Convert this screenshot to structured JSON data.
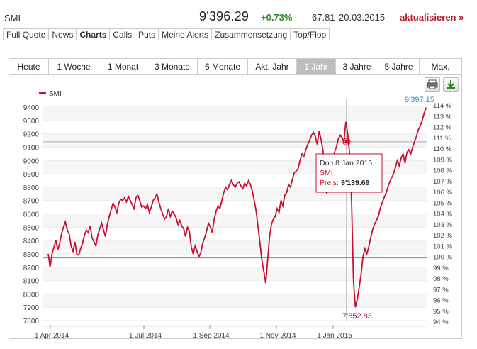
{
  "header": {
    "symbol": "SMI",
    "price": "9'396.29",
    "change": "+0.73%",
    "volume": "67.81",
    "date": "20.03.2015",
    "refresh_label": "aktualisieren »"
  },
  "tabs": [
    "Full Quote",
    "News",
    "Charts",
    "Calls",
    "Puts",
    "Meine Alerts",
    "Zusammensetzung",
    "Top/Flop"
  ],
  "active_tab": "Charts",
  "ranges": [
    "Heute",
    "1 Woche",
    "1 Monat",
    "3 Monate",
    "6 Monate",
    "Akt. Jahr",
    "1 Jahr",
    "3 Jahre",
    "5 Jahre",
    "Max."
  ],
  "active_range": "1 Jahr",
  "toolbar": {
    "print_icon": "printer-icon",
    "download_icon": "download-icon"
  },
  "chart_data": {
    "type": "line",
    "legend": "SMI",
    "y_ticks": [
      "9400",
      "9300",
      "9200",
      "9100",
      "9000",
      "8900",
      "8800",
      "8700",
      "8600",
      "8500",
      "8400",
      "8300",
      "8200",
      "8100",
      "8000",
      "7900",
      "7800"
    ],
    "y2_ticks": [
      "114 %",
      "113 %",
      "112 %",
      "111 %",
      "110 %",
      "109 %",
      "108 %",
      "107 %",
      "106 %",
      "105 %",
      "104 %",
      "103 %",
      "102 %",
      "101 %",
      "100 %",
      "99 %",
      "98 %",
      "97 %",
      "96 %",
      "95 %",
      "94 %"
    ],
    "x_ticks": [
      "1 Apr 2014",
      "1 Jul 2014",
      "1 Sep 2014",
      "1 Nov 2014",
      "1 Jan 2015"
    ],
    "ylim": [
      7800,
      9400
    ],
    "max_label": "9'397.15",
    "min_label": "7'852.83",
    "reference_value": 8270,
    "tooltip": {
      "date": "Don 8 Jan 2015",
      "series": "SMI",
      "price_label": "Preis:",
      "price_value": "9'139.69"
    },
    "series_values": [
      8300,
      8200,
      8300,
      8350,
      8400,
      8330,
      8380,
      8450,
      8500,
      8540,
      8480,
      8450,
      8360,
      8320,
      8390,
      8300,
      8290,
      8340,
      8380,
      8440,
      8480,
      8460,
      8510,
      8420,
      8390,
      8360,
      8440,
      8490,
      8530,
      8480,
      8430,
      8520,
      8580,
      8630,
      8680,
      8650,
      8610,
      8680,
      8710,
      8700,
      8720,
      8690,
      8730,
      8700,
      8670,
      8640,
      8720,
      8740,
      8700,
      8650,
      8660,
      8640,
      8670,
      8610,
      8650,
      8700,
      8720,
      8750,
      8690,
      8640,
      8600,
      8560,
      8580,
      8640,
      8580,
      8620,
      8600,
      8570,
      8520,
      8550,
      8510,
      8490,
      8430,
      8500,
      8470,
      8350,
      8300,
      8360,
      8320,
      8280,
      8310,
      8380,
      8420,
      8470,
      8530,
      8500,
      8460,
      8560,
      8620,
      8660,
      8640,
      8700,
      8760,
      8800,
      8780,
      8820,
      8850,
      8820,
      8800,
      8830,
      8840,
      8810,
      8790,
      8830,
      8810,
      8850,
      8820,
      8770,
      8700,
      8620,
      8500,
      8380,
      8250,
      8170,
      8080,
      8250,
      8430,
      8520,
      8560,
      8580,
      8640,
      8610,
      8700,
      8660,
      8740,
      8760,
      8820,
      8800,
      8860,
      8910,
      8920,
      8940,
      9000,
      9050,
      9030,
      9080,
      9120,
      9150,
      9190,
      9210,
      9180,
      9120,
      9220,
      9160,
      9080,
      8900,
      8750,
      8850,
      8950,
      9000,
      9060,
      9100,
      9160,
      9190,
      9170,
      9140,
      9290,
      9200,
      9050,
      8700,
      8100,
      7900,
      7960,
      8050,
      8150,
      8280,
      8340,
      8300,
      8350,
      8420,
      8480,
      8520,
      8550,
      8580,
      8640,
      8680,
      8720,
      8750,
      8800,
      8840,
      8870,
      8900,
      8950,
      9000,
      8960,
      9020,
      9050,
      8980,
      9060,
      9080,
      9050,
      9100,
      9140,
      9180,
      9230,
      9260,
      9300,
      9350,
      9397
    ]
  }
}
